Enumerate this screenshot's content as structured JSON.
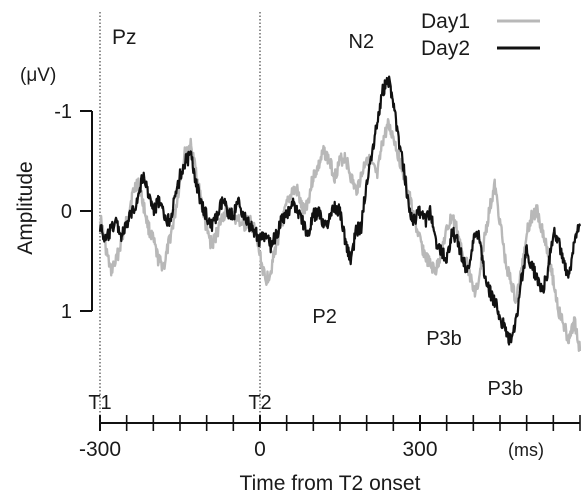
{
  "chart_data": {
    "type": "line",
    "channel_label": "Pz",
    "unit_label": "(μV)",
    "ylabel": "Amplitude",
    "xlabel": "Time from T2 onset",
    "x_unit": "(ms)",
    "y_inverted": true,
    "ylim": [
      -1,
      1
    ],
    "xlim": [
      -300,
      600
    ],
    "y_ticks": [
      -1,
      0,
      1
    ],
    "x_tick_labels": [
      -300,
      0,
      300
    ],
    "x_ticks_every_ms": 50,
    "markers": [
      {
        "label": "T1",
        "x": -300
      },
      {
        "label": "T2",
        "x": 0
      }
    ],
    "annotations": [
      {
        "label": "N2",
        "x": 190,
        "y": -1.33,
        "series": "Day2"
      },
      {
        "label": "P2",
        "x": 140,
        "y": 0.82,
        "series": "Day2"
      },
      {
        "label": "P3b",
        "x": 345,
        "y": 1.1,
        "series": "Day1"
      },
      {
        "label": "P3b",
        "x": 460,
        "y": 1.6,
        "series": "Day2"
      }
    ],
    "legend_position": "top-right",
    "series": [
      {
        "name": "Day1",
        "color": "#b8b8b8",
        "x": [
          -300,
          -290,
          -280,
          -270,
          -260,
          -250,
          -240,
          -230,
          -220,
          -210,
          -200,
          -190,
          -180,
          -170,
          -160,
          -150,
          -140,
          -130,
          -120,
          -110,
          -100,
          -90,
          -80,
          -70,
          -60,
          -50,
          -40,
          -30,
          -20,
          -10,
          0,
          10,
          20,
          30,
          40,
          50,
          60,
          70,
          80,
          90,
          100,
          110,
          120,
          130,
          140,
          150,
          160,
          170,
          180,
          190,
          200,
          210,
          220,
          230,
          240,
          250,
          260,
          270,
          280,
          290,
          300,
          310,
          320,
          330,
          340,
          350,
          360,
          370,
          380,
          390,
          400,
          410,
          420,
          430,
          440,
          450,
          460,
          470,
          480,
          490,
          500,
          510,
          520,
          530,
          540,
          550,
          560,
          570,
          580,
          590,
          600
        ],
        "y": [
          0.05,
          0.35,
          0.6,
          0.5,
          0.3,
          0.1,
          -0.15,
          -0.3,
          -0.1,
          0.15,
          0.3,
          0.5,
          0.55,
          0.3,
          0.05,
          -0.3,
          -0.6,
          -0.65,
          -0.4,
          -0.1,
          0.2,
          0.35,
          0.2,
          0.05,
          0.0,
          0.05,
          0.1,
          0.15,
          0.1,
          0.2,
          0.45,
          0.7,
          0.6,
          0.35,
          0.15,
          -0.05,
          -0.2,
          -0.2,
          0.0,
          -0.1,
          -0.35,
          -0.45,
          -0.6,
          -0.5,
          -0.35,
          -0.5,
          -0.55,
          -0.35,
          -0.2,
          -0.35,
          -0.55,
          -0.45,
          -0.35,
          -0.7,
          -0.85,
          -0.75,
          -0.55,
          -0.35,
          -0.15,
          0.1,
          0.3,
          0.45,
          0.55,
          0.6,
          0.4,
          0.2,
          0.05,
          0.2,
          0.45,
          0.55,
          0.8,
          0.75,
          0.3,
          0.0,
          -0.25,
          0.1,
          0.5,
          0.7,
          0.9,
          0.6,
          0.2,
          0.05,
          0.0,
          0.2,
          0.4,
          0.7,
          1.0,
          1.15,
          1.3,
          1.1,
          1.4
        ]
      },
      {
        "name": "Day2",
        "color": "#111111",
        "x": [
          -300,
          -290,
          -280,
          -270,
          -260,
          -250,
          -240,
          -230,
          -220,
          -210,
          -200,
          -190,
          -180,
          -170,
          -160,
          -150,
          -140,
          -130,
          -120,
          -110,
          -100,
          -90,
          -80,
          -70,
          -60,
          -50,
          -40,
          -30,
          -20,
          -10,
          0,
          10,
          20,
          30,
          40,
          50,
          60,
          70,
          80,
          90,
          100,
          110,
          120,
          130,
          140,
          150,
          160,
          170,
          180,
          190,
          200,
          210,
          220,
          230,
          240,
          250,
          260,
          270,
          280,
          290,
          300,
          310,
          320,
          330,
          340,
          350,
          360,
          370,
          380,
          390,
          400,
          410,
          420,
          430,
          440,
          450,
          460,
          470,
          480,
          490,
          500,
          510,
          520,
          530,
          540,
          550,
          560,
          570,
          580,
          590,
          600
        ],
        "y": [
          0.15,
          0.3,
          0.2,
          0.1,
          0.25,
          0.15,
          0.0,
          -0.1,
          -0.35,
          -0.2,
          0.0,
          -0.1,
          0.05,
          0.1,
          -0.1,
          -0.35,
          -0.5,
          -0.55,
          -0.3,
          -0.05,
          0.05,
          0.15,
          0.05,
          -0.1,
          0.0,
          0.05,
          -0.1,
          0.05,
          0.15,
          0.2,
          0.3,
          0.25,
          0.35,
          0.25,
          0.1,
          0.05,
          -0.1,
          0.0,
          0.1,
          0.25,
          0.05,
          0.0,
          0.15,
          0.1,
          -0.05,
          0.0,
          0.3,
          0.5,
          0.2,
          0.15,
          -0.3,
          -0.6,
          -0.9,
          -1.2,
          -1.33,
          -1.1,
          -0.7,
          -0.4,
          0.0,
          0.1,
          0.0,
          0.1,
          0.0,
          0.3,
          0.4,
          0.5,
          0.2,
          0.3,
          0.5,
          0.6,
          0.3,
          0.2,
          0.6,
          0.8,
          0.9,
          1.05,
          1.2,
          1.3,
          1.1,
          0.7,
          0.4,
          0.55,
          0.7,
          0.8,
          0.6,
          0.2,
          0.3,
          0.55,
          0.65,
          0.3,
          0.15
        ]
      }
    ]
  }
}
